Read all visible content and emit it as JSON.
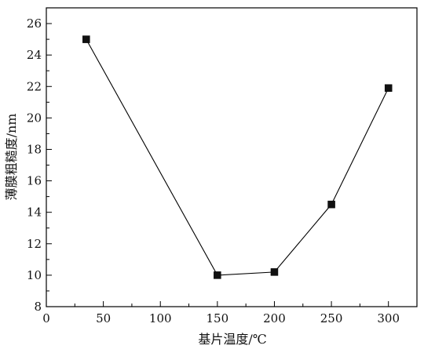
{
  "chart_data": {
    "type": "line",
    "xlabel": "基片温度/℃",
    "ylabel": "薄膜粗糙度/nm",
    "xlim": [
      0,
      325
    ],
    "ylim": [
      8,
      27
    ],
    "xticks": [
      0,
      50,
      100,
      150,
      200,
      250,
      300
    ],
    "yticks": [
      8,
      10,
      12,
      14,
      16,
      18,
      20,
      22,
      24,
      26
    ],
    "grid": false,
    "marker": "square",
    "series_color": "#000000",
    "series": [
      {
        "x": [
          35,
          150,
          200,
          250,
          300
        ],
        "y": [
          25.0,
          10.0,
          10.2,
          14.5,
          21.9
        ]
      }
    ]
  }
}
